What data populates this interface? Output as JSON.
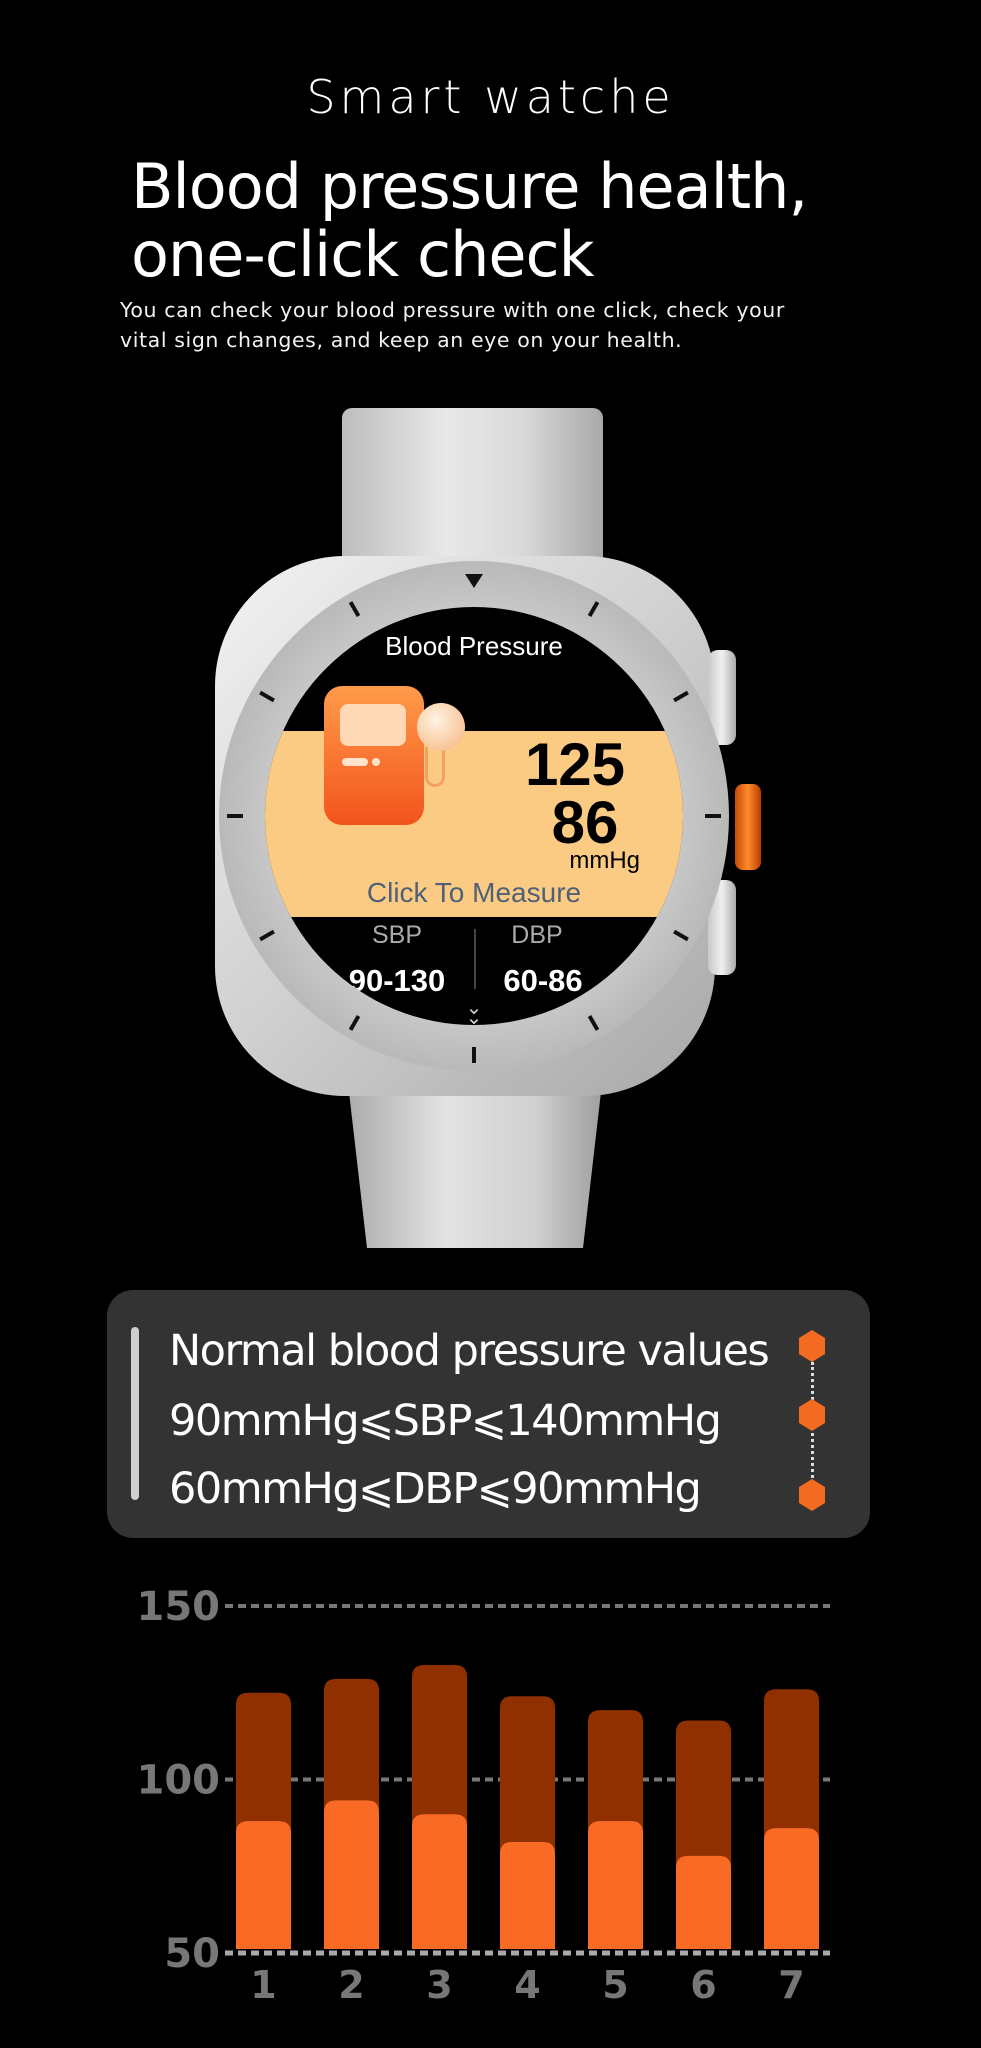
{
  "header": {
    "title": "Smart watche",
    "headline_line1": "Blood pressure health,",
    "headline_line2": "one-click check",
    "description_line1": "You can check your blood pressure with one click, check your",
    "description_line2": "vital sign changes, and keep an eye on your health."
  },
  "watch": {
    "screen_title": "Blood Pressure",
    "systolic": "125",
    "diastolic": "86",
    "unit": "mmHg",
    "action": "Click To Measure",
    "sbp_label": "SBP",
    "sbp_range": "90-130",
    "dbp_label": "DBP",
    "dbp_range": "60-86",
    "band_color": "#fccb83",
    "crown_color": "#f36b21"
  },
  "info": {
    "title": "Normal blood pressure values",
    "sbp_rule": "90mmHg⩽SBP⩽140mmHg",
    "dbp_rule": "60mmHg⩽DBP⩽90mmHg",
    "accent": "#f36b21"
  },
  "chart_data": {
    "type": "bar",
    "categories": [
      "1",
      "2",
      "3",
      "4",
      "5",
      "6",
      "7"
    ],
    "series": [
      {
        "values": [
          125,
          129,
          133,
          124,
          120,
          117,
          126
        ],
        "color": "#903000"
      },
      {
        "values": [
          88,
          94,
          90,
          82,
          88,
          78,
          86
        ],
        "color": "#f96a24"
      }
    ],
    "ylim": [
      50,
      150
    ],
    "yticks": [
      "50",
      "100",
      "150"
    ],
    "grid": true,
    "title": "",
    "xlabel": "",
    "ylabel": ""
  }
}
